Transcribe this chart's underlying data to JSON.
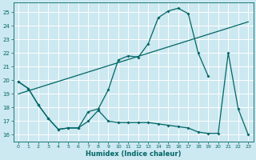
{
  "xlabel": "Humidex (Indice chaleur)",
  "bg_color": "#cce8f0",
  "line_color": "#006666",
  "grid_color": "#ffffff",
  "xlim": [
    -0.5,
    23.5
  ],
  "ylim": [
    15.5,
    25.7
  ],
  "xticks": [
    0,
    1,
    2,
    3,
    4,
    5,
    6,
    7,
    8,
    9,
    10,
    11,
    12,
    13,
    14,
    15,
    16,
    17,
    18,
    19,
    20,
    21,
    22,
    23
  ],
  "yticks": [
    16,
    17,
    18,
    19,
    20,
    21,
    22,
    23,
    24,
    25
  ],
  "line1_x": [
    0,
    1,
    2,
    3,
    4,
    5,
    6,
    7,
    8,
    9,
    10,
    11,
    12,
    13,
    14,
    15,
    16,
    17,
    18,
    19
  ],
  "line1_y": [
    19.9,
    19.4,
    18.2,
    17.2,
    16.4,
    16.5,
    16.5,
    17.7,
    17.9,
    19.3,
    21.5,
    21.8,
    21.7,
    22.7,
    24.6,
    25.1,
    25.3,
    24.9,
    22.0,
    20.3
  ],
  "line2_x": [
    0,
    23
  ],
  "line2_y": [
    19.0,
    24.3
  ],
  "line3_x": [
    0,
    1,
    2,
    3,
    4,
    5,
    6,
    7,
    8,
    9,
    10,
    11,
    12,
    13,
    14,
    15,
    16,
    17,
    18,
    19,
    20,
    21,
    22,
    23
  ],
  "line3_y": [
    19.9,
    19.4,
    18.2,
    17.2,
    16.4,
    16.5,
    16.5,
    17.0,
    17.8,
    17.0,
    16.9,
    16.9,
    16.9,
    16.9,
    16.8,
    16.7,
    16.6,
    16.5,
    16.2,
    16.1,
    16.1,
    22.0,
    17.9,
    16.0
  ]
}
